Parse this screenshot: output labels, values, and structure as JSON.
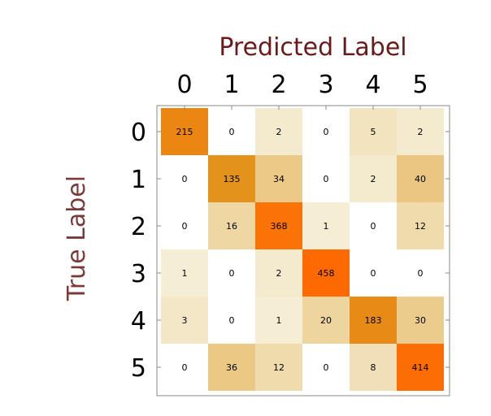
{
  "chart_data": {
    "type": "heatmap",
    "title": "Predicted Label",
    "xlabel": "Predicted Label",
    "ylabel": "True Label",
    "x_categories": [
      "0",
      "1",
      "2",
      "3",
      "4",
      "5"
    ],
    "y_categories": [
      "0",
      "1",
      "2",
      "3",
      "4",
      "5"
    ],
    "values": [
      [
        215,
        0,
        2,
        0,
        5,
        2
      ],
      [
        0,
        135,
        34,
        0,
        2,
        40
      ],
      [
        0,
        16,
        368,
        1,
        0,
        12
      ],
      [
        1,
        0,
        2,
        458,
        0,
        0
      ],
      [
        3,
        0,
        1,
        20,
        183,
        30
      ],
      [
        0,
        36,
        12,
        0,
        8,
        414
      ]
    ],
    "x_axis_position": "top",
    "grid": false,
    "legend": "none",
    "colors": {
      "low": "#ffffff",
      "high": "#ff6a00",
      "title": "#6b1a1a",
      "ylabel": "#7a3a3a",
      "frame": "#888888",
      "text": "#000000"
    }
  }
}
